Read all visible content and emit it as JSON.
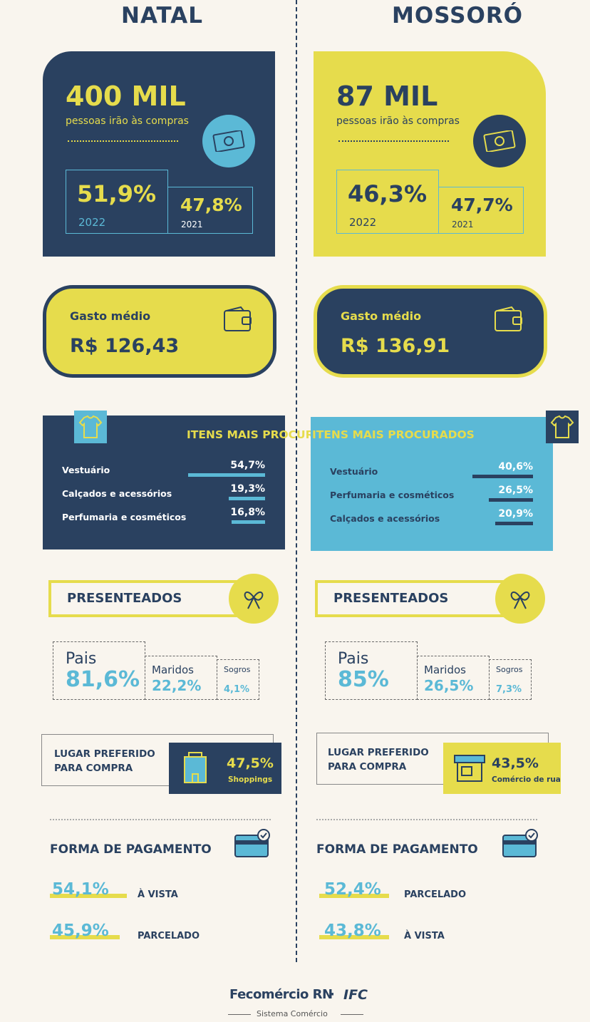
{
  "columns": [
    {
      "city": "NATAL",
      "shoppers": {
        "headline": "400 MIL",
        "caption": "pessoas irão às compras",
        "current": {
          "value": "51,9%",
          "year": "2022"
        },
        "previous": {
          "value": "47,8%",
          "year": "2021"
        }
      },
      "spending": {
        "label": "Gasto médio",
        "value": "R$ 126,43"
      },
      "items": {
        "title": "ITENS MAIS PROCURADOS",
        "rows": [
          {
            "name": "Vestuário",
            "value": 54.7,
            "label": "54,7%"
          },
          {
            "name": "Calçados e acessórios",
            "value": 19.3,
            "label": "19,3%"
          },
          {
            "name": "Perfumaria e cosméticos",
            "value": 16.8,
            "label": "16,8%"
          }
        ]
      },
      "recipients": {
        "title": "PRESENTEADOS",
        "entries": [
          {
            "name": "Pais",
            "value": "81,6%"
          },
          {
            "name": "Maridos",
            "value": "22,2%"
          },
          {
            "name": "Sogros",
            "value": "4,1%"
          }
        ]
      },
      "place": {
        "title": [
          "LUGAR PREFERIDO",
          "PARA COMPRA"
        ],
        "value": "47,5%",
        "name": "Shoppings"
      },
      "payment": {
        "title": "FORMA DE PAGAMENTO",
        "rows": [
          {
            "value": "54,1%",
            "method": "À VISTA"
          },
          {
            "value": "45,9%",
            "method": "PARCELADO"
          }
        ]
      }
    },
    {
      "city": "MOSSORÓ",
      "shoppers": {
        "headline": "87 MIL",
        "caption": "pessoas irão às compras",
        "current": {
          "value": "46,3%",
          "year": "2022"
        },
        "previous": {
          "value": "47,7%",
          "year": "2021"
        }
      },
      "spending": {
        "label": "Gasto médio",
        "value": "R$ 136,91"
      },
      "items": {
        "title": "ITENS MAIS PROCURADOS",
        "rows": [
          {
            "name": "Vestuário",
            "value": 40.6,
            "label": "40,6%"
          },
          {
            "name": "Perfumaria e cosméticos",
            "value": 26.5,
            "label": "26,5%"
          },
          {
            "name": "Calçados e acessórios",
            "value": 20.9,
            "label": "20,9%"
          }
        ]
      },
      "recipients": {
        "title": "PRESENTEADOS",
        "entries": [
          {
            "name": "Pais",
            "value": "85%"
          },
          {
            "name": "Maridos",
            "value": "26,5%"
          },
          {
            "name": "Sogros",
            "value": "7,3%"
          }
        ]
      },
      "place": {
        "title": [
          "LUGAR PREFERIDO",
          "PARA COMPRA"
        ],
        "value": "43,5%",
        "name": "Comércio de rua"
      },
      "payment": {
        "title": "FORMA DE PAGAMENTO",
        "rows": [
          {
            "value": "52,4%",
            "method": "PARCELADO"
          },
          {
            "value": "43,8%",
            "method": "À VISTA"
          }
        ]
      }
    }
  ],
  "footer": {
    "brand": "Fecomércio RN",
    "separator": "·",
    "partner": "IFC",
    "tagline": "Sistema Comércio"
  }
}
